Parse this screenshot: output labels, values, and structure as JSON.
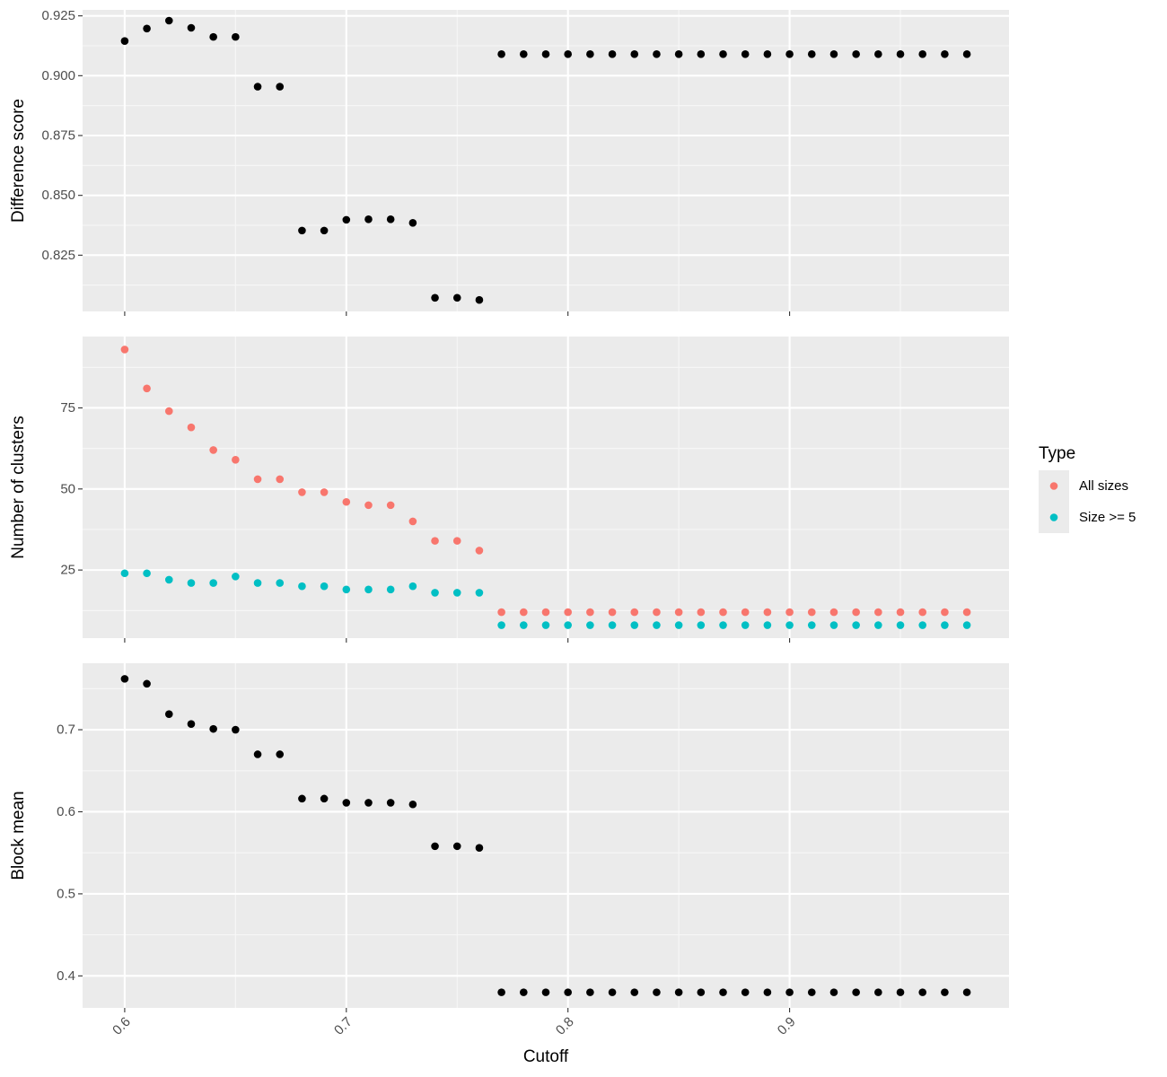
{
  "colors": {
    "panel_bg": "#EBEBEB",
    "grid_major": "#FFFFFF",
    "grid_minor": "#F7F7F7",
    "point_default": "#000000",
    "tick": "#333333",
    "tick_label": "#4D4D4D"
  },
  "chart_data": {
    "type": "scatter",
    "x_label": "Cutoff",
    "x_range": [
      0.581,
      0.999
    ],
    "x_ticks": [
      0.6,
      0.7,
      0.8,
      0.9
    ],
    "x_tick_labels": [
      "0.6",
      "0.7",
      "0.8",
      "0.9"
    ],
    "x": [
      0.6,
      0.61,
      0.62,
      0.63,
      0.64,
      0.65,
      0.66,
      0.67,
      0.68,
      0.69,
      0.7,
      0.71,
      0.72,
      0.73,
      0.74,
      0.75,
      0.76,
      0.77,
      0.78,
      0.79,
      0.8,
      0.81,
      0.82,
      0.83,
      0.84,
      0.85,
      0.86,
      0.87,
      0.88,
      0.89,
      0.9,
      0.91,
      0.92,
      0.93,
      0.94,
      0.95,
      0.96,
      0.97,
      0.98
    ],
    "grid": true,
    "legend_position": "right",
    "legend": {
      "title": "Type",
      "entries": [
        {
          "label": "All sizes",
          "color": "#F8766D"
        },
        {
          "label": "Size >= 5",
          "color": "#00BFC4"
        }
      ]
    },
    "panels": [
      {
        "y_label": "Difference score",
        "y_range": [
          0.8015,
          0.9275
        ],
        "y_ticks": [
          0.825,
          0.85,
          0.875,
          0.9,
          0.925
        ],
        "y_tick_labels": [
          "0.825",
          "0.850",
          "0.875",
          "0.900",
          "0.925"
        ],
        "series": [
          {
            "color": "#000000",
            "values": [
              0.9145,
              0.9197,
              0.923,
              0.92,
              0.9162,
              0.9162,
              0.8954,
              0.8954,
              0.8353,
              0.8353,
              0.8398,
              0.84,
              0.84,
              0.8385,
              0.8072,
              0.8072,
              0.8063,
              0.909,
              0.909,
              0.909,
              0.909,
              0.909,
              0.909,
              0.909,
              0.909,
              0.909,
              0.909,
              0.909,
              0.909,
              0.909,
              0.909,
              0.909,
              0.909,
              0.909,
              0.909,
              0.909,
              0.909,
              0.909,
              0.909
            ]
          }
        ]
      },
      {
        "y_label": "Number of clusters",
        "y_range": [
          4,
          97
        ],
        "y_ticks": [
          25,
          50,
          75
        ],
        "y_tick_labels": [
          "25",
          "50",
          "75"
        ],
        "series": [
          {
            "name": "All sizes",
            "color": "#F8766D",
            "values": [
              93,
              81,
              74,
              69,
              62,
              59,
              53,
              53,
              49,
              49,
              46,
              45,
              45,
              40,
              34,
              34,
              31,
              12,
              12,
              12,
              12,
              12,
              12,
              12,
              12,
              12,
              12,
              12,
              12,
              12,
              12,
              12,
              12,
              12,
              12,
              12,
              12,
              12,
              12
            ]
          },
          {
            "name": "Size >= 5",
            "color": "#00BFC4",
            "values": [
              24,
              24,
              22,
              21,
              21,
              23,
              21,
              21,
              20,
              20,
              19,
              19,
              19,
              20,
              18,
              18,
              18,
              8,
              8,
              8,
              8,
              8,
              8,
              8,
              8,
              8,
              8,
              8,
              8,
              8,
              8,
              8,
              8,
              8,
              8,
              8,
              8,
              8,
              8
            ]
          }
        ]
      },
      {
        "y_label": "Block mean",
        "y_range": [
          0.361,
          0.781
        ],
        "y_ticks": [
          0.4,
          0.5,
          0.6,
          0.7
        ],
        "y_tick_labels": [
          "0.4",
          "0.5",
          "0.6",
          "0.7"
        ],
        "series": [
          {
            "color": "#000000",
            "values": [
              0.762,
              0.756,
              0.719,
              0.707,
              0.701,
              0.7,
              0.67,
              0.67,
              0.616,
              0.616,
              0.611,
              0.611,
              0.611,
              0.609,
              0.558,
              0.558,
              0.556,
              0.38,
              0.38,
              0.38,
              0.38,
              0.38,
              0.38,
              0.38,
              0.38,
              0.38,
              0.38,
              0.38,
              0.38,
              0.38,
              0.38,
              0.38,
              0.38,
              0.38,
              0.38,
              0.38,
              0.38,
              0.38,
              0.38
            ]
          }
        ]
      }
    ]
  }
}
